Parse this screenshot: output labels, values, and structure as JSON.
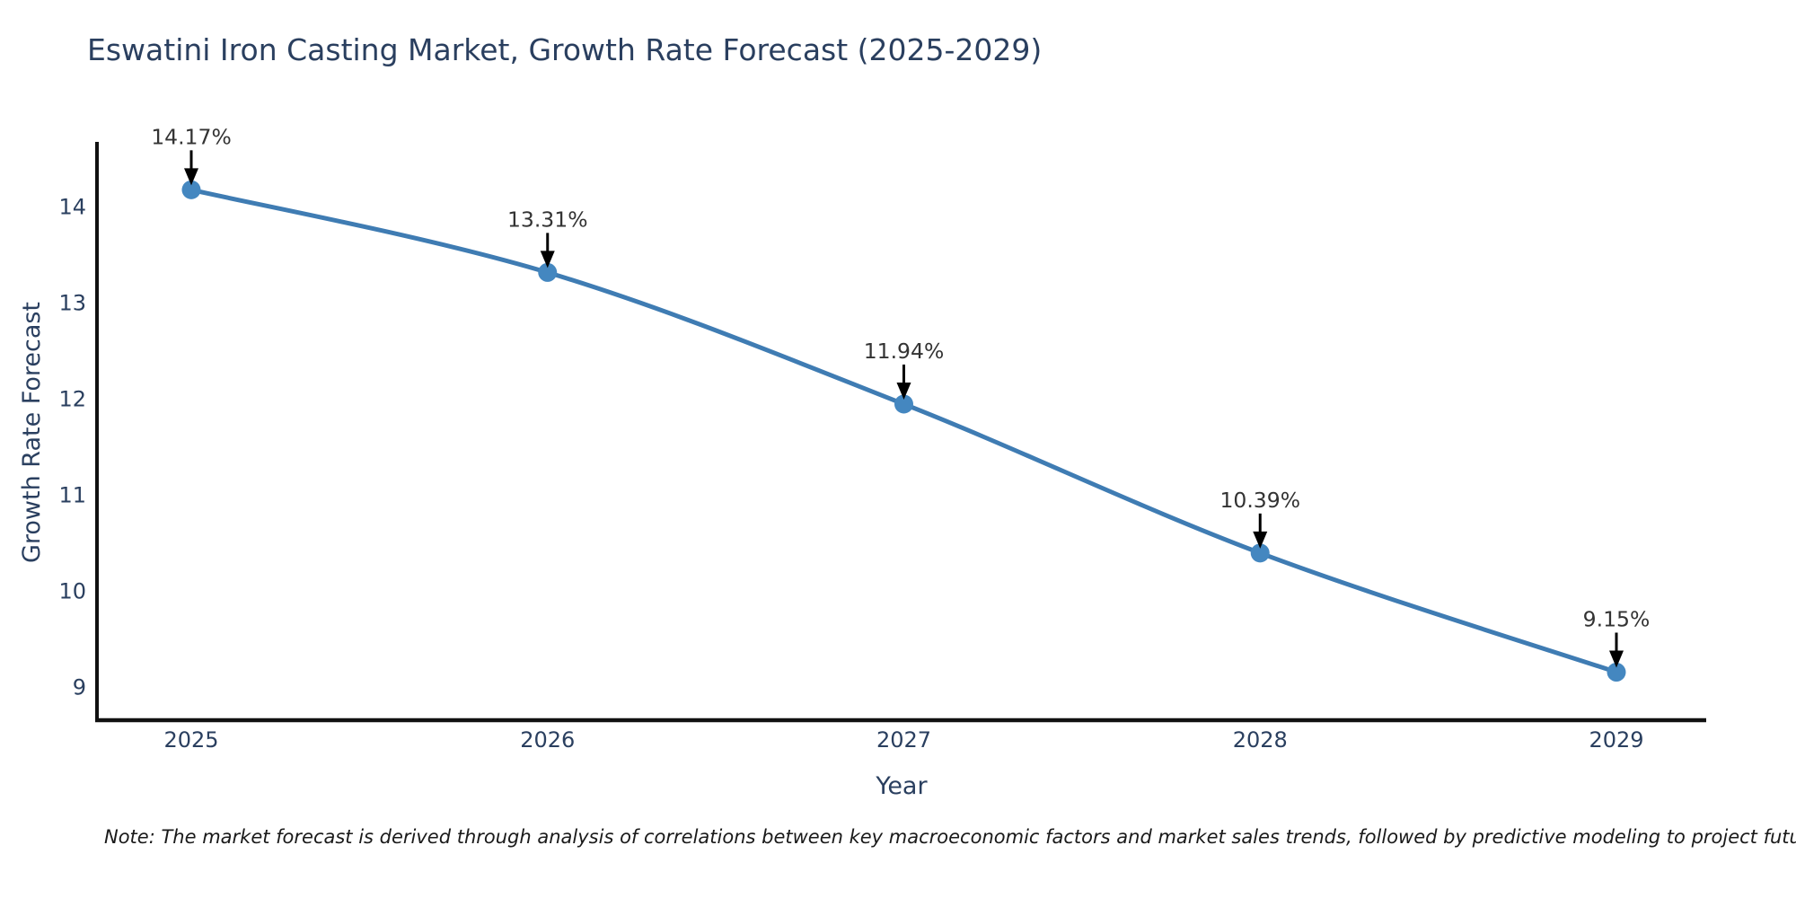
{
  "chart_data": {
    "type": "line",
    "title": "Eswatini Iron Casting Market, Growth Rate Forecast (2025-2029)",
    "xlabel": "Year",
    "ylabel": "Growth Rate Forecast",
    "categories": [
      "2025",
      "2026",
      "2027",
      "2028",
      "2029"
    ],
    "series": [
      {
        "name": "Growth Rate Forecast",
        "values": [
          14.17,
          13.31,
          11.94,
          10.39,
          9.15
        ],
        "point_labels": [
          "14.17%",
          "13.31%",
          "11.94%",
          "10.39%",
          "9.15%"
        ]
      }
    ],
    "y_ticks": [
      9,
      10,
      11,
      12,
      13,
      14
    ],
    "ylim": [
      8.65,
      14.65
    ],
    "grid": false,
    "legend": "none",
    "annotation_style": "value label with downward arrow to each point",
    "colors": {
      "line": "#3f7cb3",
      "marker": "#4487c0",
      "axis": "#111111",
      "title_text": "#2a3f5f",
      "tick_text": "#2a3f5f",
      "annotation_text": "#333333",
      "arrow": "#000000",
      "background": "#ffffff"
    }
  },
  "note": "Note: The market forecast is derived through analysis of correlations between key macroeconomic factors and market sales trends, followed by predictive modeling to project future sales"
}
